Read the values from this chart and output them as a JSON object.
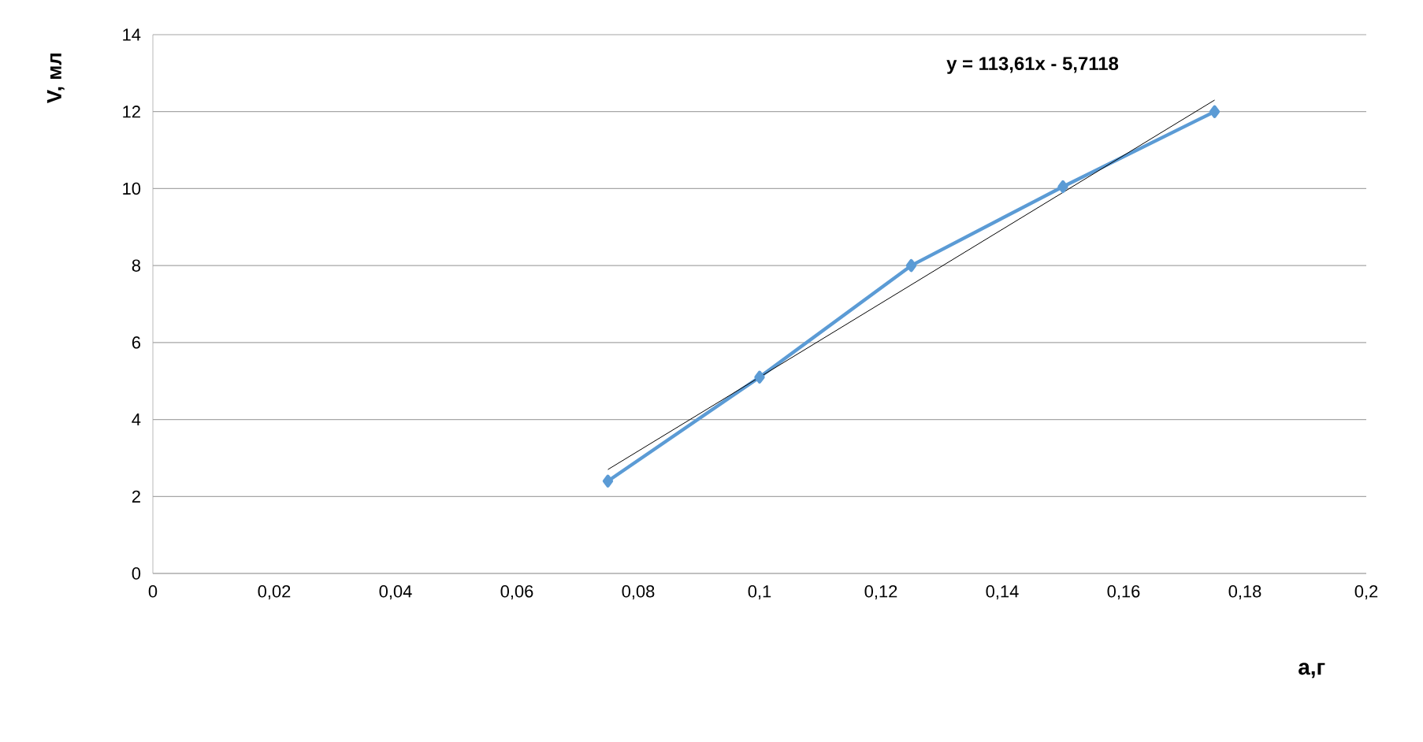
{
  "chart_data": {
    "type": "line",
    "xlabel": "а,г",
    "ylabel": "V, мл",
    "x": [
      0.075,
      0.1,
      0.125,
      0.15,
      0.175
    ],
    "series": [
      {
        "color": "#5b9bd5",
        "marker": "diamond",
        "values": [
          2.4,
          5.1,
          8.0,
          10.05,
          12.0
        ]
      },
      {
        "color": "#000000",
        "marker": "none",
        "x": [
          0.075,
          0.175
        ],
        "values": [
          2.7,
          12.3
        ]
      }
    ],
    "annotations": [
      "y = 113,61x - 5,7118"
    ],
    "xlim": [
      0,
      0.2
    ],
    "ylim": [
      0,
      14
    ],
    "xticks": [
      0,
      {
        "value": 0.02,
        "label": "0,02"
      },
      {
        "value": 0.04,
        "label": "0,04"
      },
      {
        "value": 0.06,
        "label": "0,06"
      },
      {
        "value": 0.08,
        "label": "0,08"
      },
      {
        "value": 0.1,
        "label": "0,1"
      },
      {
        "value": 0.12,
        "label": "0,12"
      },
      {
        "value": 0.14,
        "label": "0,14"
      },
      {
        "value": 0.16,
        "label": "0,16"
      },
      {
        "value": 0.18,
        "label": "0,18"
      },
      {
        "value": 0.2,
        "label": "0,2"
      }
    ],
    "yticks": [
      0,
      2,
      4,
      6,
      8,
      10,
      12,
      14
    ],
    "grid": "y"
  }
}
